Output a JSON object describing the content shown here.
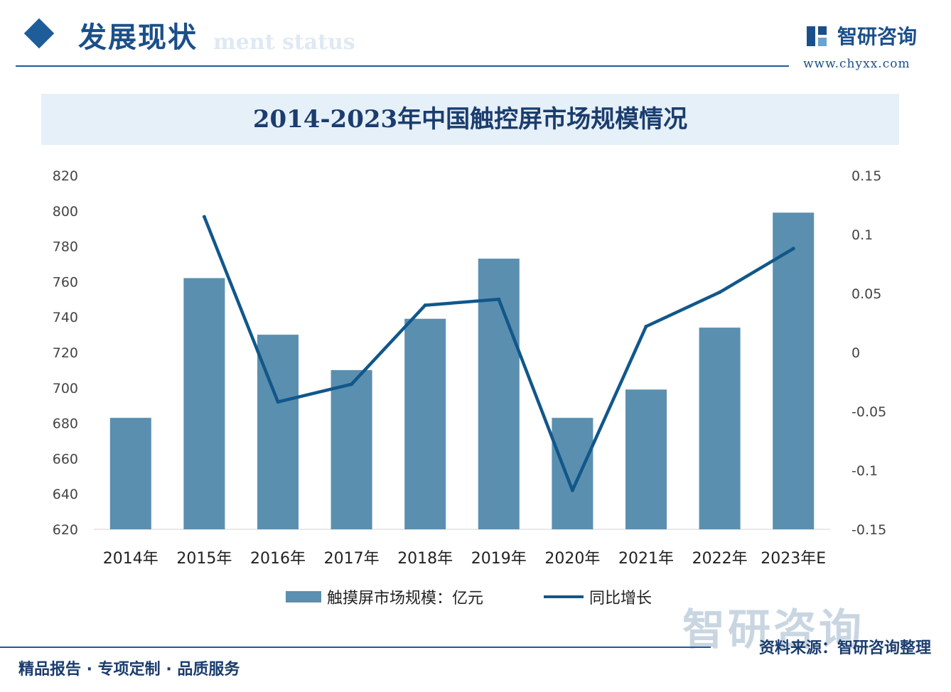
{
  "header": {
    "section_title": "发展现状",
    "section_subtitle": "ment status",
    "brand_name": "智研咨询",
    "brand_url": "www.chyxx.com"
  },
  "footer": {
    "tagline": "精品报告 · 专项定制 · 品质服务",
    "source": "资料来源：智研咨询整理",
    "watermark": "智研咨询"
  },
  "colors": {
    "bar": "#5b8faf",
    "line": "#11578a",
    "accent": "#1b4f8a"
  },
  "chart_data": {
    "type": "bar",
    "title": "2014-2023年中国触控屏市场规模情况",
    "categories": [
      "2014年",
      "2015年",
      "2016年",
      "2017年",
      "2018年",
      "2019年",
      "2020年",
      "2021年",
      "2022年",
      "2023年E"
    ],
    "series": [
      {
        "name": "触摸屏市场规模：亿元",
        "type": "bar",
        "axis": "left",
        "values": [
          683,
          762,
          730,
          710,
          739,
          773,
          683,
          699,
          734,
          799
        ]
      },
      {
        "name": "同比增长",
        "type": "line",
        "axis": "right",
        "values": [
          null,
          0.115,
          -0.042,
          -0.027,
          0.04,
          0.045,
          -0.117,
          0.022,
          0.051,
          0.088
        ]
      }
    ],
    "y_left": {
      "min": 620,
      "max": 820,
      "ticks": [
        "620",
        "640",
        "660",
        "680",
        "700",
        "720",
        "740",
        "760",
        "780",
        "800",
        "820"
      ]
    },
    "y_right": {
      "min": -0.15,
      "max": 0.15,
      "ticks": [
        "-0.15",
        "-0.1",
        "-0.05",
        "0",
        "0.05",
        "0.1",
        "0.15"
      ]
    },
    "legend_position": "bottom",
    "grid": false
  }
}
